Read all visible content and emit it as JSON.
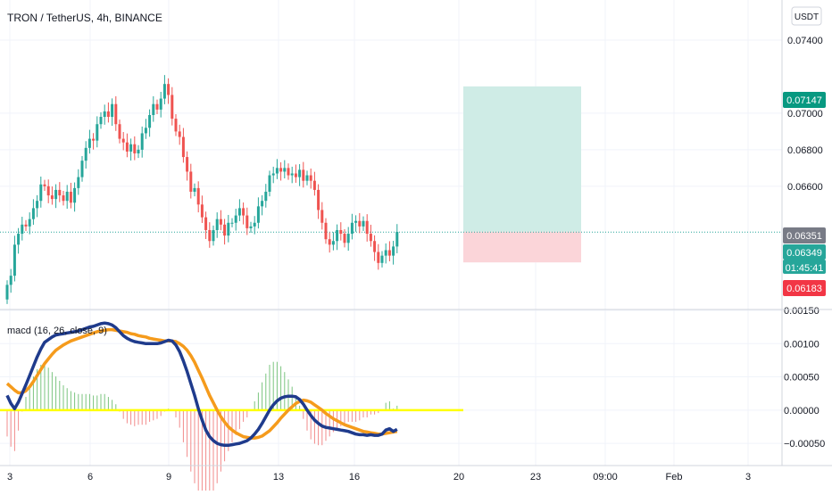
{
  "chart": {
    "title": "TRON / TetherUS, 4h, BINANCE",
    "currency_button": "USDT",
    "macd_label": "macd (16, 26, close, 9)"
  },
  "price_tags": [
    {
      "label": "0.07147",
      "color": "#089981"
    },
    {
      "label": "0.06351",
      "color": "#787b86"
    },
    {
      "label": "0.06349",
      "color": "#26a69a"
    },
    {
      "label": "01:45:41",
      "color": "#26a69a"
    },
    {
      "label": "0.06183",
      "color": "#f23645"
    }
  ],
  "colors": {
    "up": "#26a69a",
    "down": "#ef5350",
    "target_zone": "#cfece6",
    "stop_zone": "#fbd5d9",
    "macd_line": "#1f3b8c",
    "signal_line": "#f59b1c",
    "zero_line": "#ffff00"
  },
  "chart_data": [
    {
      "type": "candlestick",
      "symbol": "TRON / TetherUS",
      "interval": "4h",
      "exchange": "BINANCE",
      "ylim": [
        0.0593,
        0.0762
      ],
      "y_ticks": [
        0.066,
        0.068,
        0.07,
        0.074
      ],
      "y_tick_labels": [
        "0.06600",
        "0.06800",
        "0.07000",
        "0.07400"
      ],
      "x_ticks": [
        "3",
        "6",
        "9",
        "13",
        "16",
        "20",
        "23",
        "09:00",
        "Feb",
        "3"
      ],
      "last_price": 0.06349,
      "position": {
        "entry": 0.06351,
        "target": 0.07147,
        "stop": 0.06183
      },
      "close": [
        0.0606,
        0.0611,
        0.0628,
        0.0634,
        0.0639,
        0.0638,
        0.0642,
        0.0648,
        0.0652,
        0.0661,
        0.066,
        0.0655,
        0.0653,
        0.0658,
        0.0655,
        0.0652,
        0.0657,
        0.0651,
        0.0659,
        0.0665,
        0.0674,
        0.0681,
        0.0686,
        0.0685,
        0.0694,
        0.0698,
        0.0701,
        0.0698,
        0.0705,
        0.0694,
        0.0686,
        0.0684,
        0.0679,
        0.0683,
        0.0678,
        0.068,
        0.0689,
        0.0692,
        0.0699,
        0.0705,
        0.0702,
        0.0708,
        0.0716,
        0.071,
        0.0697,
        0.069,
        0.0687,
        0.0676,
        0.0668,
        0.0657,
        0.0659,
        0.065,
        0.0643,
        0.0636,
        0.063,
        0.0636,
        0.0642,
        0.0639,
        0.0633,
        0.064,
        0.064,
        0.0644,
        0.0648,
        0.0644,
        0.0637,
        0.0638,
        0.064,
        0.0649,
        0.0652,
        0.0657,
        0.0666,
        0.0667,
        0.067,
        0.0668,
        0.067,
        0.0666,
        0.0667,
        0.0665,
        0.0669,
        0.0663,
        0.0666,
        0.0663,
        0.0658,
        0.0647,
        0.064,
        0.0631,
        0.0628,
        0.063,
        0.0636,
        0.0634,
        0.0629,
        0.0634,
        0.064,
        0.0641,
        0.0638,
        0.0641,
        0.0634,
        0.063,
        0.0624,
        0.0618,
        0.0622,
        0.0625,
        0.0622,
        0.0627,
        0.0635
      ],
      "series": [
        {
          "name": "macd",
          "values": [
            0.00022,
            0.0001,
            2e-05,
            0.00012,
            0.00025,
            0.00038,
            0.00052,
            0.00066,
            0.0008,
            0.00092,
            0.00102,
            0.00106,
            0.0011,
            0.00113,
            0.00114,
            0.00115,
            0.00116,
            0.00117,
            0.00118,
            0.00119,
            0.00121,
            0.00123,
            0.00125,
            0.00126,
            0.00128,
            0.0013,
            0.00131,
            0.0013,
            0.00128,
            0.00124,
            0.00118,
            0.00112,
            0.00108,
            0.00105,
            0.00103,
            0.00102,
            0.00101,
            0.001,
            0.001,
            0.001,
            0.001,
            0.00101,
            0.00103,
            0.00105,
            0.00104,
            0.00098,
            0.00088,
            0.00074,
            0.00058,
            0.0004,
            0.00022,
            2e-05,
            -0.00015,
            -0.0003,
            -0.0004,
            -0.00046,
            -0.0005,
            -0.00052,
            -0.00053,
            -0.00053,
            -0.00052,
            -0.00051,
            -0.0005,
            -0.00048,
            -0.00046,
            -0.00042,
            -0.00036,
            -0.00029,
            -0.0002,
            -0.0001,
            0.0,
            8e-05,
            0.00014,
            0.00018,
            0.0002,
            0.00021,
            0.00021,
            0.0002,
            0.00016,
            9e-05,
            0.0,
            -8e-05,
            -0.00015,
            -0.0002,
            -0.00024,
            -0.00026,
            -0.00027,
            -0.00028,
            -0.00029,
            -0.0003,
            -0.00031,
            -0.00032,
            -0.00034,
            -0.00036,
            -0.00037,
            -0.00037,
            -0.00038,
            -0.00037,
            -0.00038,
            -0.00038,
            -0.00036,
            -0.0003,
            -0.00028,
            -0.00032,
            -0.00029
          ]
        },
        {
          "name": "signal",
          "values": [
            0.0004,
            0.00035,
            0.0003,
            0.00026,
            0.00026,
            0.00029,
            0.00035,
            0.00043,
            0.00052,
            0.00061,
            0.0007,
            0.00077,
            0.00084,
            0.0009,
            0.00094,
            0.00098,
            0.00101,
            0.00104,
            0.00106,
            0.00108,
            0.0011,
            0.00112,
            0.00114,
            0.00116,
            0.00118,
            0.00119,
            0.0012,
            0.00121,
            0.00121,
            0.0012,
            0.00119,
            0.00118,
            0.00117,
            0.00115,
            0.00114,
            0.00112,
            0.00111,
            0.0011,
            0.00108,
            0.00107,
            0.00106,
            0.00105,
            0.00104,
            0.00104,
            0.00104,
            0.00103,
            0.001,
            0.00096,
            0.0009,
            0.00082,
            0.00072,
            0.0006,
            0.00048,
            0.00035,
            0.00022,
            0.00011,
            0.0,
            -0.0001,
            -0.00018,
            -0.00025,
            -0.0003,
            -0.00034,
            -0.00037,
            -0.0004,
            -0.00041,
            -0.00042,
            -0.00042,
            -0.00041,
            -0.00039,
            -0.00035,
            -0.00031,
            -0.00025,
            -0.00019,
            -0.00012,
            -6e-05,
            0.0,
            5e-05,
            0.0001,
            0.00013,
            0.00015,
            0.00014,
            0.00012,
            8e-05,
            4e-05,
            0.0,
            -5e-05,
            -9e-05,
            -0.00013,
            -0.00016,
            -0.00019,
            -0.00022,
            -0.00024,
            -0.00026,
            -0.00028,
            -0.0003,
            -0.00032,
            -0.00033,
            -0.00034,
            -0.00035,
            -0.00036,
            -0.00036,
            -0.00035,
            -0.00034,
            -0.00033,
            -0.00032
          ]
        }
      ],
      "macd_ylim": [
        -0.0007,
        0.0015
      ],
      "macd_y_ticks": [
        0.0015,
        0.001,
        0.0005,
        0,
        -0.0005
      ],
      "macd_y_tick_labels": [
        "0.00150",
        "0.00100",
        "0.00050",
        "0.00000",
        "−0.00050"
      ]
    }
  ]
}
